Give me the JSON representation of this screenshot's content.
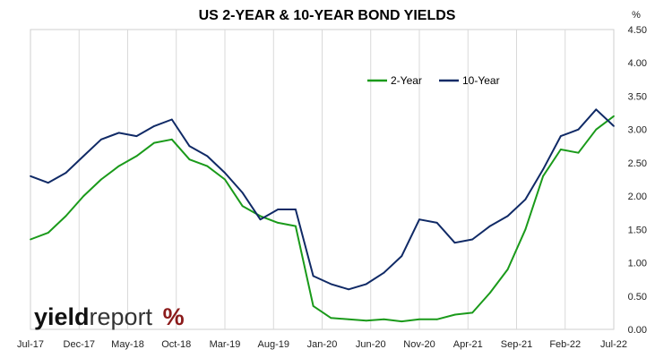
{
  "chart_data": {
    "type": "line",
    "title": "US 2-YEAR & 10-YEAR BOND YIELDS",
    "yunit": "%",
    "ylim": [
      0,
      4.5
    ],
    "yticks": [
      "0.00",
      "0.50",
      "1.00",
      "1.50",
      "2.00",
      "2.50",
      "3.00",
      "3.50",
      "4.00",
      "4.50"
    ],
    "xticks": [
      "Jul-17",
      "Dec-17",
      "May-18",
      "Oct-18",
      "Mar-19",
      "Aug-19",
      "Jan-20",
      "Jun-20",
      "Nov-20",
      "Apr-21",
      "Sep-21",
      "Feb-22",
      "Jul-22"
    ],
    "grid": "vertical",
    "legend_position": "top-center",
    "x": [
      "Jul-17",
      "Sep-17",
      "Nov-17",
      "Jan-18",
      "Mar-18",
      "May-18",
      "Jul-18",
      "Sep-18",
      "Nov-18",
      "Jan-19",
      "Mar-19",
      "May-19",
      "Jul-19",
      "Sep-19",
      "Nov-19",
      "Jan-20",
      "Mar-20",
      "May-20",
      "Jul-20",
      "Sep-20",
      "Nov-20",
      "Jan-21",
      "Mar-21",
      "May-21",
      "Jul-21",
      "Sep-21",
      "Nov-21",
      "Jan-22",
      "Feb-22",
      "Mar-22",
      "Apr-22",
      "May-22",
      "Jun-22",
      "Jul-22"
    ],
    "series": [
      {
        "name": "2-Year",
        "color": "#1a9a1a",
        "values": [
          1.35,
          1.45,
          1.7,
          2.0,
          2.25,
          2.45,
          2.6,
          2.8,
          2.85,
          2.55,
          2.45,
          2.25,
          1.85,
          1.7,
          1.6,
          1.55,
          0.35,
          0.17,
          0.15,
          0.13,
          0.15,
          0.12,
          0.15,
          0.15,
          0.22,
          0.25,
          0.55,
          0.9,
          1.5,
          2.3,
          2.7,
          2.65,
          3.0,
          3.2
        ]
      },
      {
        "name": "10-Year",
        "color": "#102a66",
        "values": [
          2.3,
          2.2,
          2.35,
          2.6,
          2.85,
          2.95,
          2.9,
          3.05,
          3.15,
          2.75,
          2.6,
          2.35,
          2.05,
          1.65,
          1.8,
          1.8,
          0.8,
          0.68,
          0.6,
          0.68,
          0.85,
          1.1,
          1.65,
          1.6,
          1.3,
          1.35,
          1.55,
          1.7,
          1.95,
          2.4,
          2.9,
          3.0,
          3.3,
          3.05
        ]
      }
    ],
    "legend": [
      "2-Year",
      "10-Year"
    ]
  },
  "branding": {
    "logo_text_bold": "yield",
    "logo_text_light": "report",
    "logo_symbol": "%"
  }
}
